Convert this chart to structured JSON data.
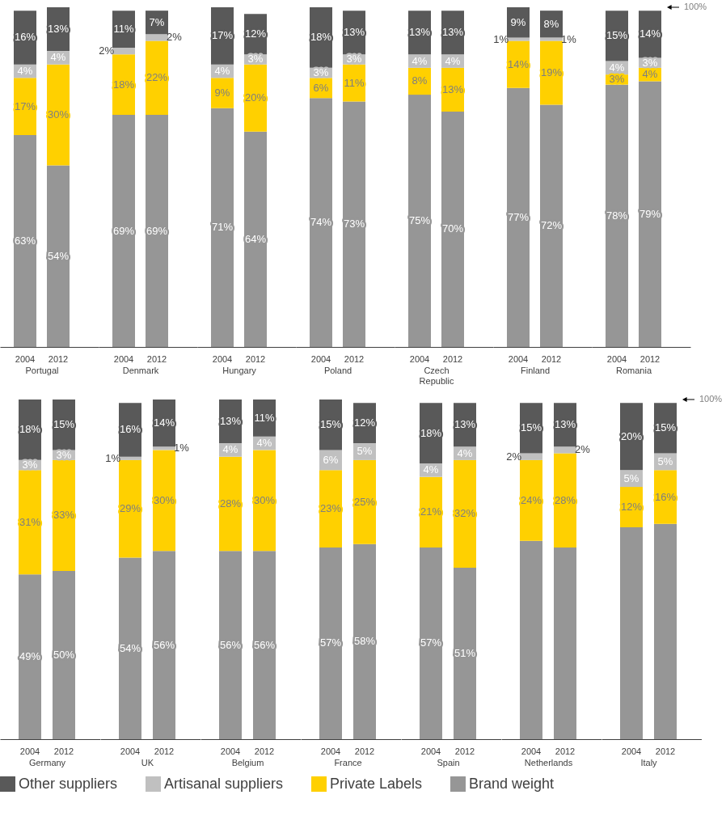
{
  "chart_data": [
    {
      "type": "bar",
      "xlabel": "Portugal",
      "categories": [
        "2004",
        "2012"
      ],
      "stacked": true,
      "legend": "bottom",
      "series": [
        {
          "name": "Brand weight",
          "color": "#969696",
          "values": [
            63,
            54
          ],
          "value_labels": [
            "63%",
            "54%"
          ]
        },
        {
          "name": "Private Labels",
          "color": "#ffd000",
          "values": [
            17,
            30
          ],
          "value_labels": [
            "17%",
            "30%"
          ]
        },
        {
          "name": "Artisanal suppliers",
          "color": "#c0c0c0",
          "values": [
            4,
            4
          ],
          "value_labels": [
            "4%",
            "4%"
          ]
        },
        {
          "name": "Other suppliers",
          "color": "#595959",
          "values": [
            16,
            13
          ],
          "value_labels": [
            "16%",
            "13%"
          ]
        }
      ]
    },
    {
      "type": "bar",
      "xlabel": "Denmark",
      "categories": [
        "2004",
        "2012"
      ],
      "stacked": true,
      "legend": "bottom",
      "series": [
        {
          "name": "Brand weight",
          "color": "#969696",
          "values": [
            69,
            69
          ],
          "value_labels": [
            "69%",
            "69%"
          ]
        },
        {
          "name": "Private Labels",
          "color": "#ffd000",
          "values": [
            18,
            22
          ],
          "value_labels": [
            "18%",
            "22%"
          ]
        },
        {
          "name": "Artisanal suppliers",
          "color": "#c0c0c0",
          "values": [
            2,
            2
          ],
          "value_labels": [
            "2%",
            "2%"
          ]
        },
        {
          "name": "Other suppliers",
          "color": "#595959",
          "values": [
            11,
            7
          ],
          "value_labels": [
            "11%",
            "7%"
          ]
        }
      ]
    },
    {
      "type": "bar",
      "xlabel": "Hungary",
      "categories": [
        "2004",
        "2012"
      ],
      "stacked": true,
      "legend": "bottom",
      "series": [
        {
          "name": "Brand weight",
          "color": "#969696",
          "values": [
            71,
            64
          ],
          "value_labels": [
            "71%",
            "64%"
          ]
        },
        {
          "name": "Private Labels",
          "color": "#ffd000",
          "values": [
            9,
            20
          ],
          "value_labels": [
            "9%",
            "20%"
          ]
        },
        {
          "name": "Artisanal suppliers",
          "color": "#c0c0c0",
          "values": [
            4,
            3
          ],
          "value_labels": [
            "4%",
            "3%"
          ]
        },
        {
          "name": "Other suppliers",
          "color": "#595959",
          "values": [
            17,
            12
          ],
          "value_labels": [
            "17%",
            "12%"
          ]
        }
      ]
    },
    {
      "type": "bar",
      "xlabel": "Poland",
      "categories": [
        "2004",
        "2012"
      ],
      "stacked": true,
      "legend": "bottom",
      "series": [
        {
          "name": "Brand weight",
          "color": "#969696",
          "values": [
            74,
            73
          ],
          "value_labels": [
            "74%",
            "73%"
          ]
        },
        {
          "name": "Private Labels",
          "color": "#ffd000",
          "values": [
            6,
            11
          ],
          "value_labels": [
            "6%",
            "11%"
          ]
        },
        {
          "name": "Artisanal suppliers",
          "color": "#c0c0c0",
          "values": [
            3,
            3
          ],
          "value_labels": [
            "3%",
            "3%"
          ]
        },
        {
          "name": "Other suppliers",
          "color": "#595959",
          "values": [
            18,
            13
          ],
          "value_labels": [
            "18%",
            "13%"
          ]
        }
      ]
    },
    {
      "type": "bar",
      "xlabel": "Czech Republic",
      "categories": [
        "2004",
        "2012"
      ],
      "stacked": true,
      "legend": "bottom",
      "series": [
        {
          "name": "Brand weight",
          "color": "#969696",
          "values": [
            75,
            70
          ],
          "value_labels": [
            "75%",
            "70%"
          ]
        },
        {
          "name": "Private Labels",
          "color": "#ffd000",
          "values": [
            8,
            13
          ],
          "value_labels": [
            "8%",
            "13%"
          ]
        },
        {
          "name": "Artisanal suppliers",
          "color": "#c0c0c0",
          "values": [
            4,
            4
          ],
          "value_labels": [
            "4%",
            "4%"
          ]
        },
        {
          "name": "Other suppliers",
          "color": "#595959",
          "values": [
            13,
            13
          ],
          "value_labels": [
            "13%",
            "13%"
          ]
        }
      ]
    },
    {
      "type": "bar",
      "xlabel": "Finland",
      "categories": [
        "2004",
        "2012"
      ],
      "stacked": true,
      "legend": "bottom",
      "series": [
        {
          "name": "Brand weight",
          "color": "#969696",
          "values": [
            77,
            72
          ],
          "value_labels": [
            "77%",
            "72%"
          ]
        },
        {
          "name": "Private Labels",
          "color": "#ffd000",
          "values": [
            14,
            19
          ],
          "value_labels": [
            "14%",
            "19%"
          ]
        },
        {
          "name": "Artisanal suppliers",
          "color": "#c0c0c0",
          "values": [
            1,
            1
          ],
          "value_labels": [
            "1%",
            "1%"
          ]
        },
        {
          "name": "Other suppliers",
          "color": "#595959",
          "values": [
            9,
            8
          ],
          "value_labels": [
            "9%",
            "8%"
          ]
        }
      ]
    },
    {
      "type": "bar",
      "xlabel": "Romania",
      "categories": [
        "2004",
        "2012"
      ],
      "stacked": true,
      "legend": "bottom",
      "annotations": [
        "100%"
      ],
      "series": [
        {
          "name": "Brand weight",
          "color": "#969696",
          "values": [
            78,
            79
          ],
          "value_labels": [
            "78%",
            "79%"
          ]
        },
        {
          "name": "Private Labels",
          "color": "#ffd000",
          "values": [
            3,
            4
          ],
          "value_labels": [
            "3%",
            "4%"
          ]
        },
        {
          "name": "Artisanal suppliers",
          "color": "#c0c0c0",
          "values": [
            4,
            3
          ],
          "value_labels": [
            "4%",
            "3%"
          ]
        },
        {
          "name": "Other suppliers",
          "color": "#595959",
          "values": [
            15,
            14
          ],
          "value_labels": [
            "15%",
            "14%"
          ]
        }
      ]
    },
    {
      "type": "bar",
      "xlabel": "Germany",
      "categories": [
        "2004",
        "2012"
      ],
      "stacked": true,
      "legend": "bottom",
      "series": [
        {
          "name": "Brand weight",
          "color": "#969696",
          "values": [
            49,
            50
          ],
          "value_labels": [
            "49%",
            "50%"
          ]
        },
        {
          "name": "Private Labels",
          "color": "#ffd000",
          "values": [
            31,
            33
          ],
          "value_labels": [
            "31%",
            "33%"
          ]
        },
        {
          "name": "Artisanal suppliers",
          "color": "#c0c0c0",
          "values": [
            3,
            3
          ],
          "value_labels": [
            "3%",
            "3%"
          ]
        },
        {
          "name": "Other suppliers",
          "color": "#595959",
          "values": [
            18,
            15
          ],
          "value_labels": [
            "18%",
            "15%"
          ]
        }
      ]
    },
    {
      "type": "bar",
      "xlabel": "UK",
      "categories": [
        "2004",
        "2012"
      ],
      "stacked": true,
      "legend": "bottom",
      "series": [
        {
          "name": "Brand weight",
          "color": "#969696",
          "values": [
            54,
            56
          ],
          "value_labels": [
            "54%",
            "56%"
          ]
        },
        {
          "name": "Private Labels",
          "color": "#ffd000",
          "values": [
            29,
            30
          ],
          "value_labels": [
            "29%",
            "30%"
          ]
        },
        {
          "name": "Artisanal suppliers",
          "color": "#c0c0c0",
          "values": [
            1,
            1
          ],
          "value_labels": [
            "1%",
            "1%"
          ]
        },
        {
          "name": "Other suppliers",
          "color": "#595959",
          "values": [
            16,
            14
          ],
          "value_labels": [
            "16%",
            "14%"
          ]
        }
      ]
    },
    {
      "type": "bar",
      "xlabel": "Belgium",
      "categories": [
        "2004",
        "2012"
      ],
      "stacked": true,
      "legend": "bottom",
      "series": [
        {
          "name": "Brand weight",
          "color": "#969696",
          "values": [
            56,
            56
          ],
          "value_labels": [
            "56%",
            "56%"
          ]
        },
        {
          "name": "Private Labels",
          "color": "#ffd000",
          "values": [
            28,
            30
          ],
          "value_labels": [
            "28%",
            "30%"
          ]
        },
        {
          "name": "Artisanal suppliers",
          "color": "#c0c0c0",
          "values": [
            4,
            4
          ],
          "value_labels": [
            "4%",
            "4%"
          ]
        },
        {
          "name": "Other suppliers",
          "color": "#595959",
          "values": [
            13,
            11
          ],
          "value_labels": [
            "13%",
            "11%"
          ]
        }
      ]
    },
    {
      "type": "bar",
      "xlabel": "France",
      "categories": [
        "2004",
        "2012"
      ],
      "stacked": true,
      "legend": "bottom",
      "series": [
        {
          "name": "Brand weight",
          "color": "#969696",
          "values": [
            57,
            58
          ],
          "value_labels": [
            "57%",
            "58%"
          ]
        },
        {
          "name": "Private Labels",
          "color": "#ffd000",
          "values": [
            23,
            25
          ],
          "value_labels": [
            "23%",
            "25%"
          ]
        },
        {
          "name": "Artisanal suppliers",
          "color": "#c0c0c0",
          "values": [
            6,
            5
          ],
          "value_labels": [
            "6%",
            "5%"
          ]
        },
        {
          "name": "Other suppliers",
          "color": "#595959",
          "values": [
            15,
            12
          ],
          "value_labels": [
            "15%",
            "12%"
          ]
        }
      ]
    },
    {
      "type": "bar",
      "xlabel": "Spain",
      "categories": [
        "2004",
        "2012"
      ],
      "stacked": true,
      "legend": "bottom",
      "series": [
        {
          "name": "Brand weight",
          "color": "#969696",
          "values": [
            57,
            51
          ],
          "value_labels": [
            "57%",
            "51%"
          ]
        },
        {
          "name": "Private Labels",
          "color": "#ffd000",
          "values": [
            21,
            32
          ],
          "value_labels": [
            "21%",
            "32%"
          ]
        },
        {
          "name": "Artisanal suppliers",
          "color": "#c0c0c0",
          "values": [
            4,
            4
          ],
          "value_labels": [
            "4%",
            "4%"
          ]
        },
        {
          "name": "Other suppliers",
          "color": "#595959",
          "values": [
            18,
            13
          ],
          "value_labels": [
            "18%",
            "13%"
          ]
        }
      ]
    },
    {
      "type": "bar",
      "xlabel": "Netherlands",
      "categories": [
        "2004",
        "2012"
      ],
      "stacked": true,
      "legend": "bottom",
      "series": [
        {
          "name": "Brand weight",
          "color": "#969696",
          "values": [
            59,
            57
          ],
          "value_labels": [
            null,
            null
          ]
        },
        {
          "name": "Private Labels",
          "color": "#ffd000",
          "values": [
            24,
            28
          ],
          "value_labels": [
            "24%",
            "28%"
          ]
        },
        {
          "name": "Artisanal suppliers",
          "color": "#c0c0c0",
          "values": [
            2,
            2
          ],
          "value_labels": [
            "2%",
            "2%"
          ]
        },
        {
          "name": "Other suppliers",
          "color": "#595959",
          "values": [
            15,
            13
          ],
          "value_labels": [
            "15%",
            "13%"
          ]
        }
      ]
    },
    {
      "type": "bar",
      "xlabel": "Italy",
      "categories": [
        "2004",
        "2012"
      ],
      "stacked": true,
      "legend": "bottom",
      "annotations": [
        "100%"
      ],
      "series": [
        {
          "name": "Brand weight",
          "color": "#969696",
          "values": [
            63,
            64
          ],
          "value_labels": [
            null,
            null
          ]
        },
        {
          "name": "Private Labels",
          "color": "#ffd000",
          "values": [
            12,
            16
          ],
          "value_labels": [
            "12%",
            "16%"
          ]
        },
        {
          "name": "Artisanal suppliers",
          "color": "#c0c0c0",
          "values": [
            5,
            5
          ],
          "value_labels": [
            "5%",
            "5%"
          ]
        },
        {
          "name": "Other suppliers",
          "color": "#595959",
          "values": [
            20,
            15
          ],
          "value_labels": [
            "20%",
            "15%"
          ]
        }
      ]
    }
  ]
}
